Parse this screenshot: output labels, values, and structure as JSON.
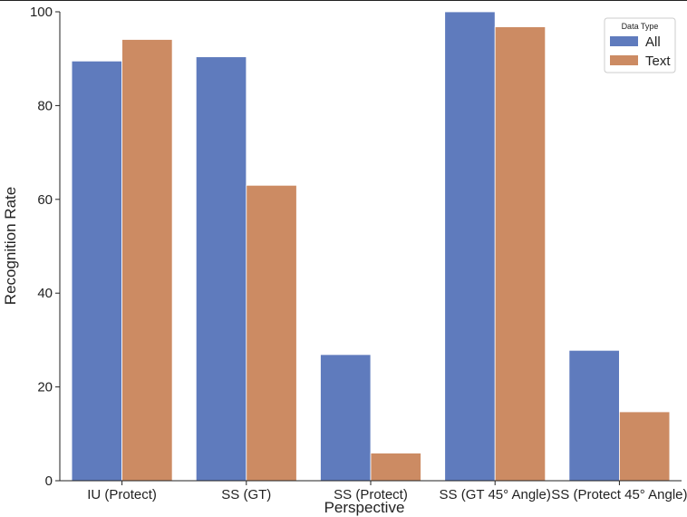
{
  "chart_data": {
    "type": "bar",
    "categories": [
      "IU (Protect)",
      "SS (GT)",
      "SS (Protect)",
      "SS (GT 45° Angle)",
      "SS (Protect 45° Angle)"
    ],
    "series": [
      {
        "name": "All",
        "values": [
          89.5,
          90.4,
          26.9,
          100.0,
          27.8
        ],
        "color": "#5f7bbd"
      },
      {
        "name": "Text",
        "values": [
          94.1,
          63.0,
          5.9,
          96.8,
          14.7
        ],
        "color": "#cc8b63"
      }
    ],
    "xlabel": "Perspective",
    "ylabel": "Recognition Rate",
    "ylim": [
      0,
      100
    ],
    "yticks": [
      0,
      20,
      40,
      60,
      80,
      100
    ],
    "grid": false,
    "legend": {
      "title": "Data Type",
      "position": "top-right"
    }
  }
}
